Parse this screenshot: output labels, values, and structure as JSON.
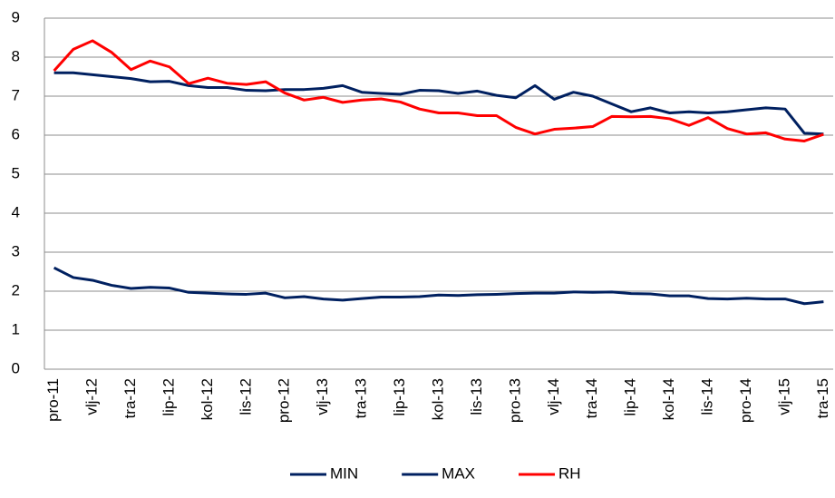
{
  "chart_data": {
    "type": "line",
    "categories": [
      "pro-11",
      null,
      "vlj-12",
      null,
      "tra-12",
      null,
      "lip-12",
      null,
      "kol-12",
      null,
      "lis-12",
      null,
      "pro-12",
      null,
      "vlj-13",
      null,
      "tra-13",
      null,
      "lip-13",
      null,
      "kol-13",
      null,
      "lis-13",
      null,
      "pro-13",
      null,
      "vlj-14",
      null,
      "tra-14",
      null,
      "lip-14",
      null,
      "kol-14",
      null,
      "lis-14",
      null,
      "pro-14",
      null,
      "vlj-15",
      null,
      "tra-15"
    ],
    "series": [
      {
        "name": "MIN",
        "color": "#002060",
        "values": [
          2.6,
          2.35,
          2.28,
          2.15,
          2.07,
          2.1,
          2.08,
          1.97,
          1.95,
          1.93,
          1.92,
          1.95,
          1.83,
          1.86,
          1.8,
          1.77,
          1.81,
          1.85,
          1.85,
          1.86,
          1.9,
          1.89,
          1.91,
          1.92,
          1.94,
          1.95,
          1.95,
          1.98,
          1.97,
          1.98,
          1.94,
          1.93,
          1.88,
          1.88,
          1.81,
          1.8,
          1.82,
          1.8,
          1.8,
          1.68,
          1.73
        ]
      },
      {
        "name": "MAX",
        "color": "#002060",
        "values": [
          7.6,
          7.6,
          7.55,
          7.5,
          7.45,
          7.37,
          7.38,
          7.27,
          7.22,
          7.22,
          7.15,
          7.14,
          7.17,
          7.17,
          7.2,
          7.27,
          7.1,
          7.07,
          7.05,
          7.15,
          7.14,
          7.07,
          7.13,
          7.02,
          6.96,
          7.27,
          6.92,
          7.1,
          7.0,
          6.8,
          6.6,
          6.7,
          6.57,
          6.6,
          6.57,
          6.6,
          6.65,
          6.7,
          6.67,
          6.05,
          6.03
        ]
      },
      {
        "name": "RH",
        "color": "#ff0000",
        "values": [
          7.65,
          8.2,
          8.42,
          8.12,
          7.68,
          7.9,
          7.75,
          7.32,
          7.46,
          7.33,
          7.3,
          7.37,
          7.08,
          6.9,
          6.97,
          6.84,
          6.9,
          6.93,
          6.85,
          6.67,
          6.57,
          6.57,
          6.5,
          6.5,
          6.2,
          6.03,
          6.15,
          6.18,
          6.22,
          6.48,
          6.47,
          6.48,
          6.42,
          6.25,
          6.45,
          6.17,
          6.03,
          6.06,
          5.9,
          5.85,
          6.02
        ]
      }
    ],
    "ylim": [
      0,
      9
    ],
    "yticks": [
      0,
      1,
      2,
      3,
      4,
      5,
      6,
      7,
      8,
      9
    ],
    "grid": true,
    "legend": "bottom"
  }
}
